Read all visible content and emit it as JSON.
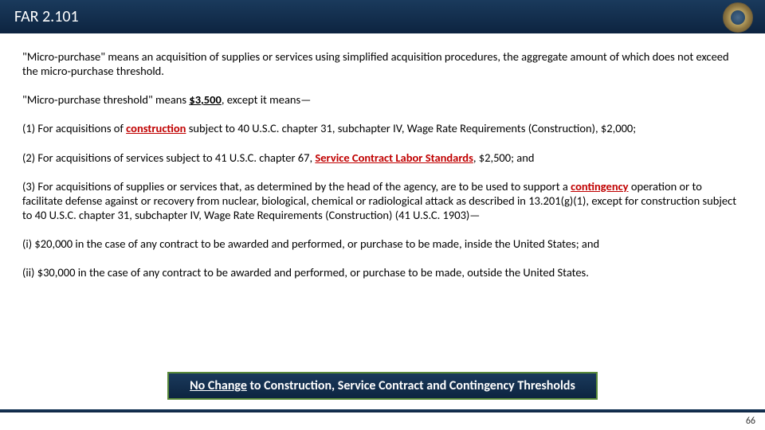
{
  "header": {
    "title": "FAR 2.101"
  },
  "paragraphs": {
    "p1a": "\"Micro-purchase\" means an acquisition of supplies or services using simplified acquisition procedures, the aggregate amount of which does not exceed the micro-purchase threshold.",
    "p2a": "\"Micro-purchase threshold\" means ",
    "p2b": "$3,500",
    "p2c": ", except it means—",
    "p3a": "(1) For acquisitions of ",
    "p3b": "construction",
    "p3c": " subject to 40 U.S.C. chapter 31, subchapter IV, Wage Rate Requirements (Construction), $2,000;",
    "p4a": "(2) For acquisitions of services subject to 41 U.S.C. chapter 67, ",
    "p4b": "Service Contract Labor Standards",
    "p4c": ", $2,500; and",
    "p5a": "(3) For acquisitions of supplies or services that, as determined by the head of the agency, are to be used to support a ",
    "p5b": "contingency",
    "p5c": " operation or to facilitate defense against or recovery from nuclear, biological, chemical or radiological attack as described in 13.201(g)(1), except for construction subject to 40 U.S.C. chapter 31, subchapter IV, Wage Rate Requirements (Construction) (41 U.S.C. 1903)—",
    "p6": "(i) $20,000 in the case of any contract to be awarded and performed, or purchase to be made, inside the United States; and",
    "p7": "(ii) $30,000 in the case of any contract to be awarded and performed, or purchase to be made, outside the United States."
  },
  "callout": {
    "lead": "No Change",
    "rest": " to Construction, Service Contract and Contingency Thresholds"
  },
  "pageNumber": "66",
  "colors": {
    "headerGradientTop": "#1a3a5c",
    "headerGradientBottom": "#0d2440",
    "linkRed": "#c00000",
    "calloutBorder": "#5a8a3a",
    "bodyText": "#000000"
  }
}
